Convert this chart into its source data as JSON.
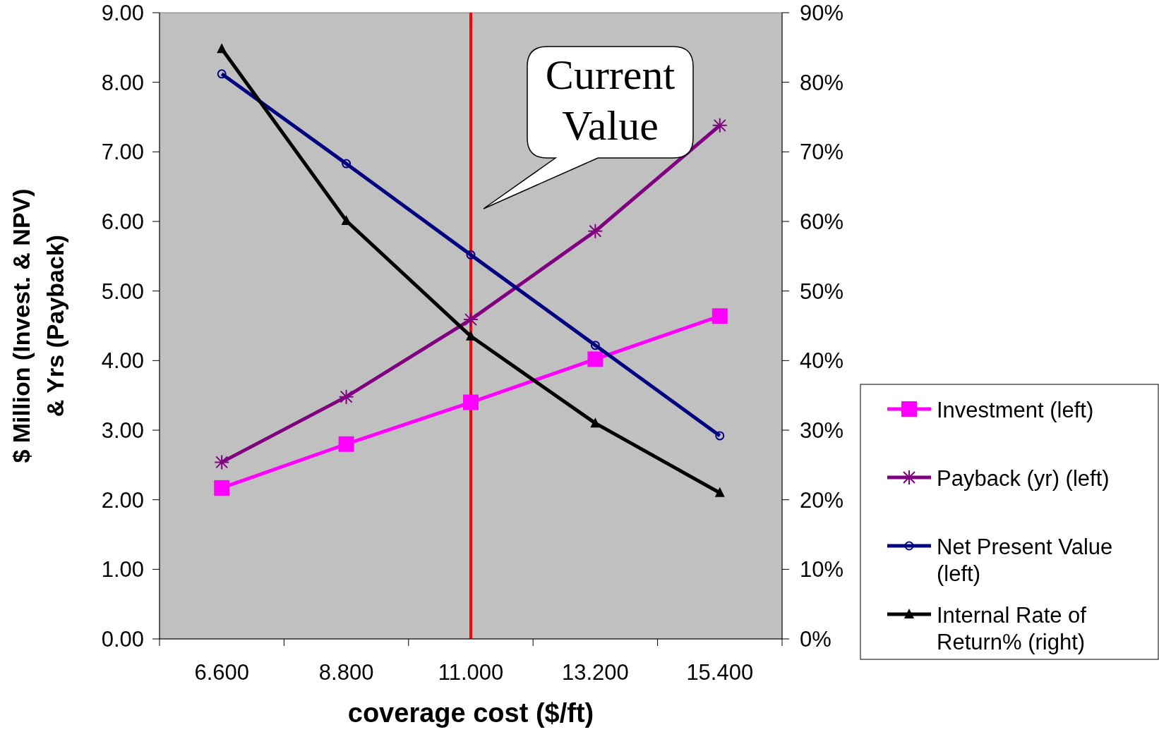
{
  "chart_data": {
    "type": "line",
    "xlabel": "coverage cost ($/ft)",
    "ylabel": "$ Million (Invest. & NPV)\n& Yrs (Payback)",
    "categories": [
      "6.600",
      "8.800",
      "11.000",
      "13.200",
      "15.400"
    ],
    "series": [
      {
        "name": "Investment (left)",
        "color": "#ff00ff",
        "marker": "square",
        "values": [
          2.17,
          2.8,
          3.4,
          4.02,
          4.64
        ]
      },
      {
        "name": "Payback (yr) (left)",
        "color": "#800080",
        "marker": "cross",
        "values": [
          2.54,
          3.48,
          4.59,
          5.86,
          7.38
        ]
      },
      {
        "name": "Net Present Value (left)",
        "color": "#000080",
        "marker": "circle",
        "values": [
          8.12,
          6.83,
          5.52,
          4.22,
          2.92
        ]
      },
      {
        "name": "Internal Rate of Return% (right)",
        "color": "#000000",
        "marker": "triangle",
        "axis": "y2",
        "values": [
          84.8,
          60.1,
          43.5,
          31.0,
          21.0
        ]
      }
    ],
    "ylim": [
      0,
      9
    ],
    "yticks": [
      {
        "value": 0,
        "label": "0.00"
      },
      {
        "value": 1,
        "label": "1.00"
      },
      {
        "value": 2,
        "label": "2.00"
      },
      {
        "value": 3,
        "label": "3.00"
      },
      {
        "value": 4,
        "label": "4.00"
      },
      {
        "value": 5,
        "label": "5.00"
      },
      {
        "value": 6,
        "label": "6.00"
      },
      {
        "value": 7,
        "label": "7.00"
      },
      {
        "value": 8,
        "label": "8.00"
      },
      {
        "value": 9,
        "label": "9.00"
      }
    ],
    "y2lim": [
      0,
      90
    ],
    "y2ticks": [
      {
        "value": 0,
        "label": "0%"
      },
      {
        "value": 10,
        "label": "10%"
      },
      {
        "value": 20,
        "label": "20%"
      },
      {
        "value": 30,
        "label": "30%"
      },
      {
        "value": 40,
        "label": "40%"
      },
      {
        "value": 50,
        "label": "50%"
      },
      {
        "value": 60,
        "label": "60%"
      },
      {
        "value": 70,
        "label": "70%"
      },
      {
        "value": 80,
        "label": "80%"
      },
      {
        "value": 90,
        "label": "90%"
      }
    ],
    "ref_lines": [
      {
        "axis": "x",
        "value": "11.000",
        "color": "#ff0000"
      }
    ],
    "annotations": [
      "Current\nValue"
    ],
    "grid": false,
    "legend": "right"
  }
}
